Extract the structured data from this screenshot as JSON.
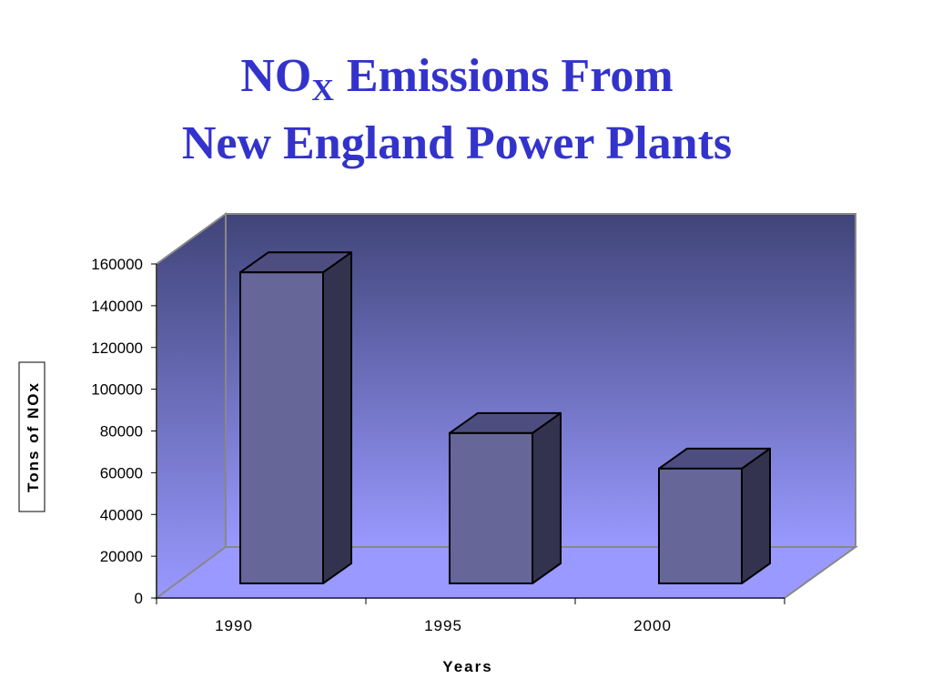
{
  "chart_data": {
    "type": "bar3d",
    "title": {
      "main": "NO",
      "subscript": "X",
      "rest": "Emissions From",
      "line2": "New England Power Plants"
    },
    "x_label": "Years",
    "y_label": "Tons of NOx",
    "categories": [
      "1990",
      "1995",
      "2000"
    ],
    "values": [
      149000,
      72000,
      55000
    ],
    "color": "#666699",
    "ylim": [
      0,
      160000
    ],
    "yticks": [
      0,
      20000,
      40000,
      60000,
      80000,
      100000,
      120000,
      140000,
      160000
    ]
  }
}
